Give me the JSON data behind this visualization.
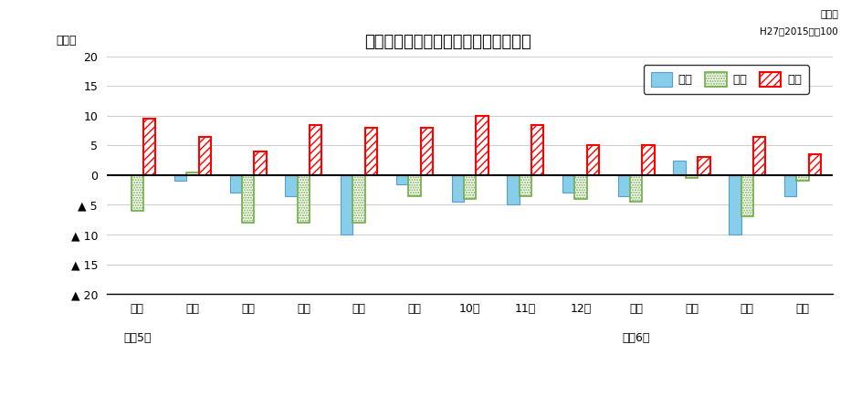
{
  "title": "生産・出荷・在庫の前年同月比の推移",
  "ylabel": "（％）",
  "subtitle1": "原指数",
  "subtitle2": "H27（2015）＝100",
  "categories": [
    "４月",
    "５月",
    "６月",
    "７月",
    "８月",
    "９月",
    "10月",
    "11月",
    "12月",
    "１月",
    "２月",
    "３月",
    "４月"
  ],
  "year_label_1": "令和5年",
  "year_label_2": "令和6年",
  "year_label_1_xpos": 0,
  "year_label_2_xpos": 9,
  "legend_production": "生産",
  "legend_shipment": "出荷",
  "legend_inventory": "在庫",
  "production": [
    0.0,
    -1.0,
    -3.0,
    -3.5,
    -10.0,
    -1.5,
    -4.5,
    -5.0,
    -3.0,
    -3.5,
    2.5,
    -10.0,
    -3.5
  ],
  "shipment": [
    -6.0,
    0.5,
    -8.0,
    -8.0,
    -8.0,
    -3.5,
    -4.0,
    -3.5,
    -4.0,
    -4.5,
    -0.5,
    -7.0,
    -1.0
  ],
  "inventory": [
    9.5,
    6.5,
    4.0,
    8.5,
    8.0,
    8.0,
    10.0,
    8.5,
    5.0,
    5.0,
    3.0,
    6.5,
    3.5
  ],
  "ylim": [
    -20,
    20
  ],
  "yticks": [
    20,
    15,
    10,
    5,
    0,
    -5,
    -10,
    -15,
    -20
  ],
  "production_color": "#87CEEB",
  "production_edge": "#5B9BD5",
  "shipment_color": "white",
  "shipment_edge": "#70AD47",
  "inventory_color": "white",
  "inventory_edge": "#FF0000",
  "background_color": "#ffffff",
  "grid_color": "#cccccc",
  "bar_width": 0.22
}
